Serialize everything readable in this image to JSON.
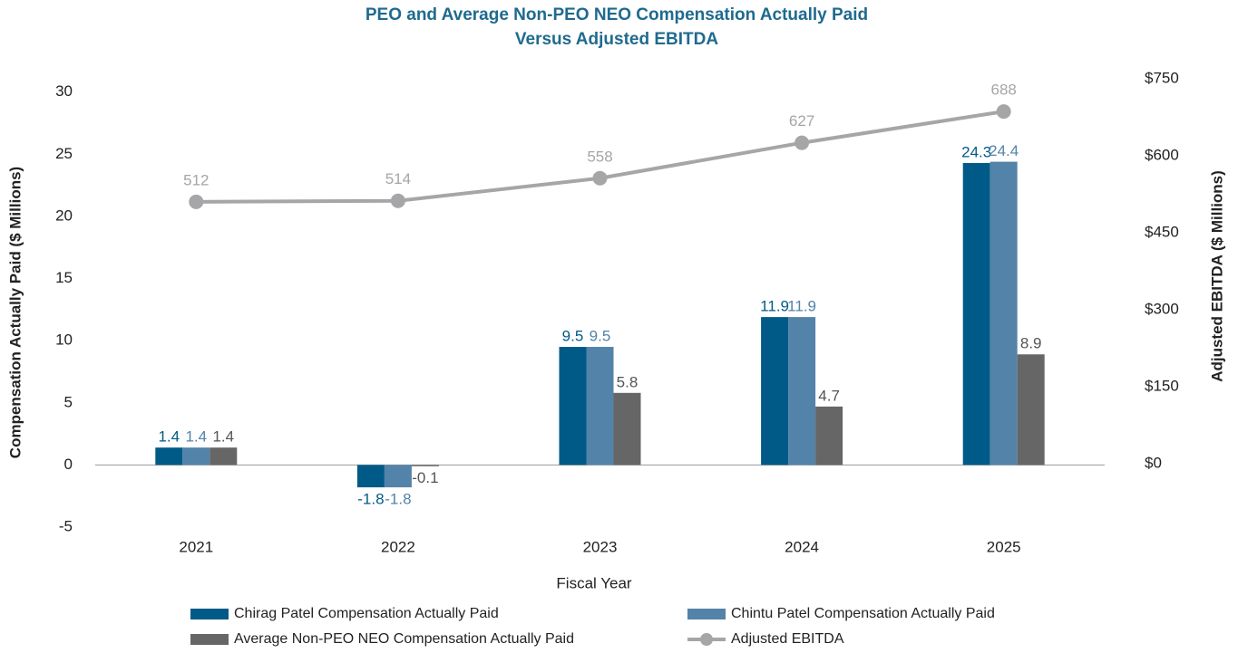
{
  "chart_data": {
    "type": "bar_line",
    "title": [
      "PEO and Average Non-PEO NEO Compensation Actually Paid",
      "Versus Adjusted EBITDA"
    ],
    "xlabel": "Fiscal Year",
    "ylabel": "Compensation Actually Paid ($ Millions)",
    "y2label": "Adjusted EBITDA ($ Millions)",
    "categories": [
      "2021",
      "2022",
      "2023",
      "2024",
      "2025"
    ],
    "series": [
      {
        "name": "Chirag Patel Compensation Actually Paid",
        "type": "bar",
        "color": "#005a87",
        "values": [
          1.4,
          -1.8,
          9.5,
          11.9,
          24.3
        ]
      },
      {
        "name": "Chintu Patel Compensation Actually Paid",
        "type": "bar",
        "color": "#5383a8",
        "values": [
          1.4,
          -1.8,
          9.5,
          11.9,
          24.4
        ]
      },
      {
        "name": "Average Non-PEO NEO Compensation Actually Paid",
        "type": "bar",
        "color": "#666666",
        "values": [
          1.4,
          -0.1,
          5.8,
          4.7,
          8.9
        ]
      },
      {
        "name": "Adjusted EBITDA",
        "type": "line",
        "axis": "y2",
        "color": "#a6a6a8",
        "values": [
          512,
          514,
          558,
          627,
          688
        ]
      }
    ],
    "ylim": [
      -5,
      31
    ],
    "yticks": [
      -5,
      0,
      5,
      10,
      15,
      20,
      25,
      30
    ],
    "y2lim": [
      -122,
      750
    ],
    "y2ticks": [
      {
        "value": 0,
        "label": "$0"
      },
      {
        "value": 150,
        "label": "$150"
      },
      {
        "value": 300,
        "label": "$300"
      },
      {
        "value": 450,
        "label": "$450"
      },
      {
        "value": 600,
        "label": "$600"
      },
      {
        "value": 750,
        "label": "$750"
      }
    ]
  }
}
